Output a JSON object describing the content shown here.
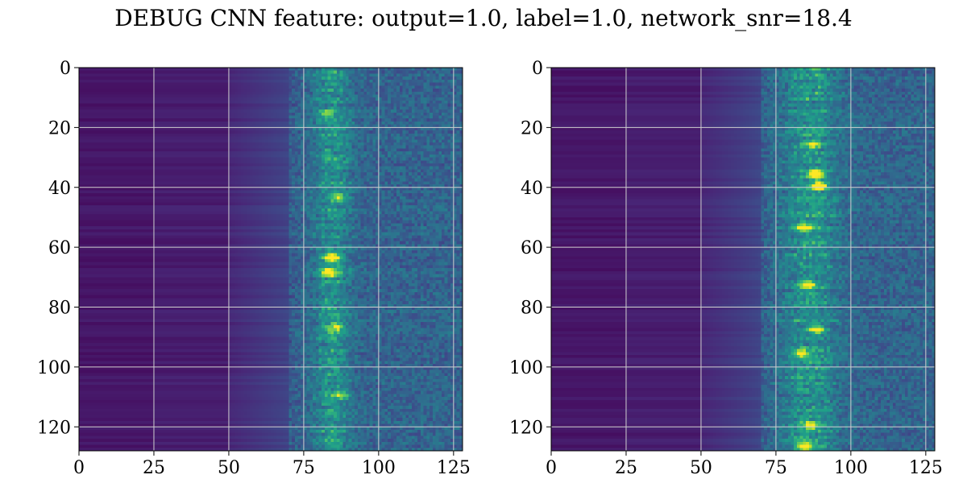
{
  "title": "DEBUG CNN feature: output=1.0, label=1.0, network_snr=18.4",
  "colors": {
    "background": "#ffffff",
    "grid": "#d0d0d0",
    "axes": "#000000",
    "colormap": [
      "#440154",
      "#482878",
      "#3e4989",
      "#31688e",
      "#26828e",
      "#1f9e89",
      "#35b779",
      "#6ece58",
      "#b5de2b",
      "#fde725"
    ]
  },
  "chart_data": [
    {
      "type": "heatmap",
      "colormap": "viridis",
      "grid": true,
      "xlim": [
        0,
        128
      ],
      "ylim": [
        128,
        0
      ],
      "x_ticks": [
        0,
        25,
        50,
        75,
        100,
        125
      ],
      "y_ticks": [
        0,
        20,
        40,
        60,
        80,
        100,
        120
      ],
      "x_tick_labels": [
        "0",
        "25",
        "50",
        "75",
        "100",
        "125"
      ],
      "y_tick_labels": [
        "0",
        "20",
        "40",
        "60",
        "80",
        "100",
        "120"
      ],
      "feature_band_center": 84,
      "feature_band_width": 6,
      "hotspots": [
        {
          "x": 84,
          "y": 63,
          "value": 1.0
        },
        {
          "x": 83,
          "y": 68,
          "value": 0.75
        },
        {
          "x": 86,
          "y": 43,
          "value": 0.45
        },
        {
          "x": 85,
          "y": 86,
          "value": 0.45
        },
        {
          "x": 87,
          "y": 109,
          "value": 0.4
        },
        {
          "x": 82,
          "y": 15,
          "value": 0.35
        }
      ]
    },
    {
      "type": "heatmap",
      "colormap": "viridis",
      "grid": true,
      "xlim": [
        0,
        128
      ],
      "ylim": [
        128,
        0
      ],
      "x_ticks": [
        0,
        25,
        50,
        75,
        100,
        125
      ],
      "y_ticks": [
        0,
        20,
        40,
        60,
        80,
        100,
        120
      ],
      "x_tick_labels": [
        "0",
        "25",
        "50",
        "75",
        "100",
        "125"
      ],
      "y_tick_labels": [
        "0",
        "20",
        "40",
        "60",
        "80",
        "100",
        "120"
      ],
      "feature_band_center": 86,
      "feature_band_width": 9,
      "hotspots": [
        {
          "x": 88,
          "y": 35,
          "value": 1.0
        },
        {
          "x": 89,
          "y": 39,
          "value": 0.95
        },
        {
          "x": 84,
          "y": 53,
          "value": 0.7
        },
        {
          "x": 85,
          "y": 72,
          "value": 0.65
        },
        {
          "x": 88,
          "y": 87,
          "value": 0.6
        },
        {
          "x": 84,
          "y": 126,
          "value": 0.65
        },
        {
          "x": 86,
          "y": 119,
          "value": 0.55
        },
        {
          "x": 87,
          "y": 25,
          "value": 0.5
        },
        {
          "x": 83,
          "y": 95,
          "value": 0.5
        }
      ]
    }
  ]
}
